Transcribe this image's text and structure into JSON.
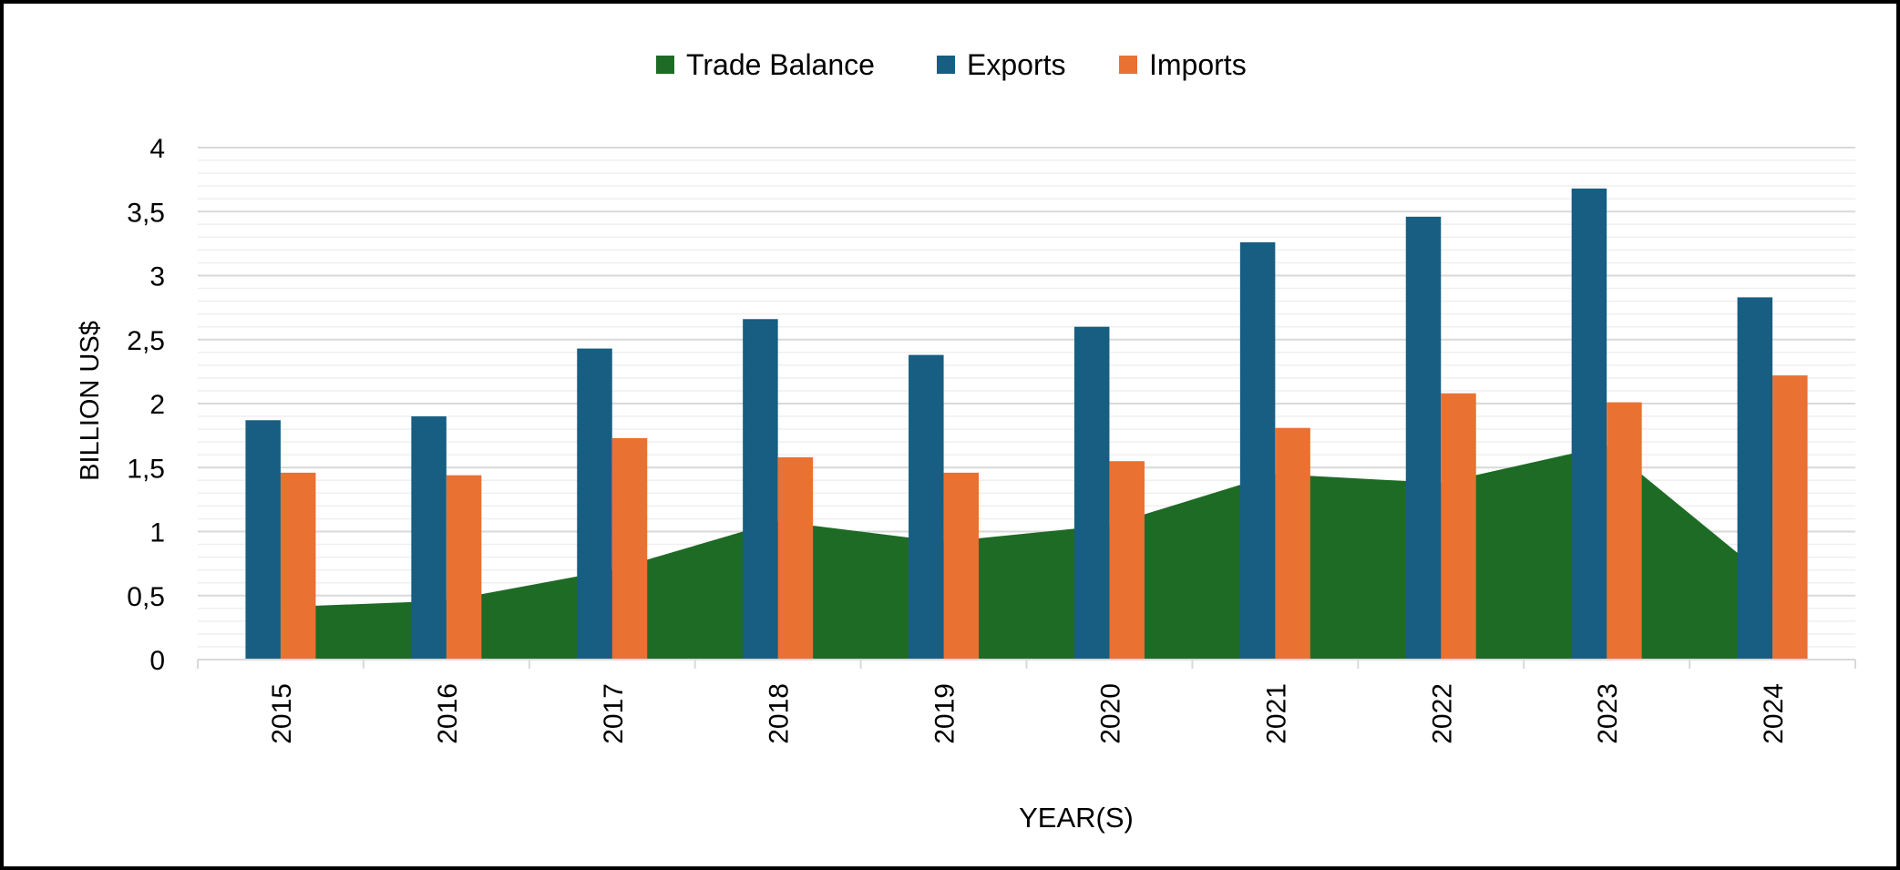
{
  "chart_data": {
    "type": "bar",
    "title": "",
    "xlabel": "YEAR(S)",
    "ylabel": "BILLION US$",
    "ylim": [
      0,
      4
    ],
    "yticks": [
      "0",
      "0,5",
      "1",
      "1,5",
      "2",
      "2,5",
      "3",
      "3,5",
      "4"
    ],
    "grid": true,
    "legend_position": "top-center",
    "categories": [
      "2015",
      "2016",
      "2017",
      "2018",
      "2019",
      "2020",
      "2021",
      "2022",
      "2023",
      "2024"
    ],
    "series": [
      {
        "name": "Trade Balance",
        "type": "area",
        "color": "#1e6b26",
        "values": [
          0.41,
          0.46,
          0.7,
          1.08,
          0.92,
          1.05,
          1.45,
          1.38,
          1.67,
          0.61
        ]
      },
      {
        "name": "Exports",
        "type": "bar",
        "color": "#175e82",
        "values": [
          1.87,
          1.9,
          2.43,
          2.66,
          2.38,
          2.6,
          3.26,
          3.46,
          3.68,
          2.83
        ]
      },
      {
        "name": "Imports",
        "type": "bar",
        "color": "#e97132",
        "values": [
          1.46,
          1.44,
          1.73,
          1.58,
          1.46,
          1.55,
          1.81,
          2.08,
          2.01,
          2.22
        ]
      }
    ]
  }
}
